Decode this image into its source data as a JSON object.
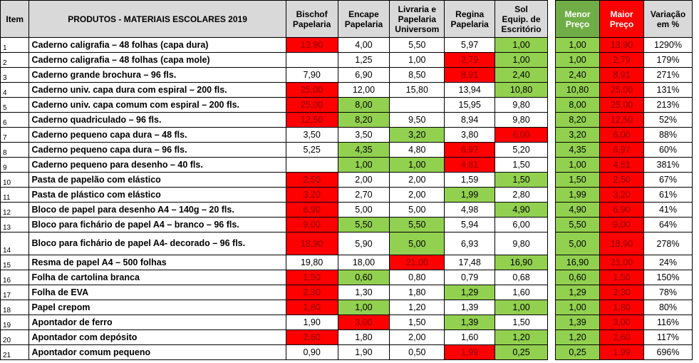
{
  "headers": {
    "item": "Item",
    "product": "PRODUTOS - MATERIAIS ESCOLARES 2019",
    "stores": [
      {
        "line1": "Bischof",
        "line2": "Papelaria",
        "line3": ""
      },
      {
        "line1": "Encape",
        "line2": "Papelaria",
        "line3": ""
      },
      {
        "line1": "Livraria e",
        "line2": "Papelaria",
        "line3": "Universom"
      },
      {
        "line1": "Regina",
        "line2": "Papelaria",
        "line3": ""
      },
      {
        "line1": "Sol",
        "line2": "Equip. de",
        "line3": "Escritório"
      }
    ],
    "min": {
      "line1": "Menor",
      "line2": "Preço"
    },
    "max": {
      "line1": "Maior",
      "line2": "Preço"
    },
    "var": {
      "line1": "Variação",
      "line2": "em %"
    }
  },
  "colors": {
    "min_highlight": "#92d050",
    "max_highlight": "#ff0000",
    "header_grey": "#d9d9d9"
  },
  "rows": [
    {
      "item": "1",
      "product": "Caderno caligrafia – 48 folhas  (capa dura)",
      "prices": [
        "13,90",
        "4,00",
        "5,50",
        "5,97",
        "1,00"
      ],
      "hl": [
        "r",
        "",
        "",
        "",
        "g"
      ],
      "min": "1,00",
      "max": "13,90",
      "var": "1290%"
    },
    {
      "item": "2",
      "product": "Caderno caligrafia – 48 folhas (capa mole)",
      "prices": [
        "",
        "1,25",
        "1,00",
        "2,79",
        "1,00"
      ],
      "hl": [
        "",
        "",
        "",
        "r",
        "g"
      ],
      "min": "1,00",
      "max": "2,79",
      "var": "179%"
    },
    {
      "item": "3",
      "product": "Caderno grande brochura – 96 fls.",
      "prices": [
        "7,90",
        "6,90",
        "8,50",
        "8,91",
        "2,40"
      ],
      "hl": [
        "",
        "",
        "",
        "r",
        "g"
      ],
      "min": "2,40",
      "max": "8,91",
      "var": "271%"
    },
    {
      "item": "4",
      "product": "Caderno univ. capa dura com espiral – 200 fls.",
      "prices": [
        "25,00",
        "12,00",
        "15,80",
        "13,94",
        "10,80"
      ],
      "hl": [
        "r",
        "",
        "",
        "",
        "g"
      ],
      "min": "10,80",
      "max": "25,00",
      "var": "131%"
    },
    {
      "item": "5",
      "product": "Caderno univ. capa comum com espiral – 200 fls.",
      "prices": [
        "25,00",
        "8,00",
        "",
        "15,95",
        "9,80"
      ],
      "hl": [
        "r",
        "g",
        "",
        "",
        ""
      ],
      "min": "8,00",
      "max": "25,00",
      "var": "213%"
    },
    {
      "item": "6",
      "product": "Caderno quadriculado – 96 fls.",
      "prices": [
        "12,50",
        "8,20",
        "9,50",
        "8,94",
        "9,80"
      ],
      "hl": [
        "r",
        "g",
        "",
        "",
        ""
      ],
      "min": "8,20",
      "max": "12,50",
      "var": "52%"
    },
    {
      "item": "7",
      "product": "Caderno pequeno capa dura – 48 fls.",
      "prices": [
        "3,50",
        "3,50",
        "3,20",
        "3,80",
        "6,00"
      ],
      "hl": [
        "",
        "",
        "g",
        "",
        "r"
      ],
      "min": "3,20",
      "max": "6,00",
      "var": "88%"
    },
    {
      "item": "8",
      "product": "Caderno pequeno capa dura – 96 fls.",
      "prices": [
        "5,25",
        "4,35",
        "4,80",
        "6,97",
        "5,20"
      ],
      "hl": [
        "",
        "g",
        "",
        "r",
        ""
      ],
      "min": "4,35",
      "max": "6,97",
      "var": "60%"
    },
    {
      "item": "9",
      "product": "Caderno pequeno para desenho – 40 fls.",
      "prices": [
        "",
        "1,00",
        "1,00",
        "4,81",
        "1,50"
      ],
      "hl": [
        "",
        "g",
        "g",
        "r",
        ""
      ],
      "min": "1,00",
      "max": "4,81",
      "var": "381%"
    },
    {
      "item": "10",
      "product": "Pasta de papelão com elástico",
      "prices": [
        "2,50",
        "2,00",
        "2,00",
        "1,59",
        "1,50"
      ],
      "hl": [
        "r",
        "",
        "",
        "",
        "g"
      ],
      "min": "1,50",
      "max": "2,50",
      "var": "67%"
    },
    {
      "item": "11",
      "product": "Pasta de plástico com elástico",
      "prices": [
        "3,20",
        "2,70",
        "2,00",
        "1,99",
        "2,80"
      ],
      "hl": [
        "r",
        "",
        "",
        "g",
        ""
      ],
      "min": "1,99",
      "max": "3,20",
      "var": "61%"
    },
    {
      "item": "12",
      "product": "Bloco de papel para desenho A4 – 140g – 20 fls.",
      "prices": [
        "6,90",
        "5,00",
        "5,00",
        "4,98",
        "4,90"
      ],
      "hl": [
        "r",
        "",
        "",
        "",
        "g"
      ],
      "min": "4,90",
      "max": "6,90",
      "var": "41%"
    },
    {
      "item": "13",
      "product": "Bloco para fichário de papel A4 – branco – 96 fls.",
      "prices": [
        "9,00",
        "5,50",
        "5,50",
        "5,94",
        "6,00"
      ],
      "hl": [
        "r",
        "g",
        "g",
        "",
        ""
      ],
      "min": "5,50",
      "max": "9,00",
      "var": "64%"
    },
    {
      "item": "14",
      "product": "Bloco para fichário de papel A4- decorado – 96 fls.",
      "prices": [
        "18,90",
        "5,90",
        "5,00",
        "6,93",
        "9,80"
      ],
      "hl": [
        "r",
        "",
        "g",
        "",
        ""
      ],
      "min": "5,00",
      "max": "18,90",
      "var": "278%"
    },
    {
      "item": "15",
      "product": "Resma de papel A4 – 500 folhas",
      "prices": [
        "19,80",
        "18,00",
        "21,00",
        "17,48",
        "16,90"
      ],
      "hl": [
        "",
        "",
        "r",
        "",
        "g"
      ],
      "min": "16,90",
      "max": "21,00",
      "var": "24%"
    },
    {
      "item": "16",
      "product": "Folha de cartolina branca",
      "prices": [
        "1,50",
        "0,60",
        "0,80",
        "0,79",
        "0,68"
      ],
      "hl": [
        "r",
        "g",
        "",
        "",
        ""
      ],
      "min": "0,60",
      "max": "1,50",
      "var": "150%"
    },
    {
      "item": "17",
      "product": "Folha de EVA",
      "prices": [
        "2,30",
        "1,30",
        "1,80",
        "1,29",
        "1,60"
      ],
      "hl": [
        "r",
        "",
        "",
        "g",
        ""
      ],
      "min": "1,29",
      "max": "2,30",
      "var": "78%"
    },
    {
      "item": "18",
      "product": "Papel crepom",
      "prices": [
        "1,80",
        "1,00",
        "1,20",
        "1,39",
        "1,00"
      ],
      "hl": [
        "r",
        "g",
        "",
        "",
        "g"
      ],
      "min": "1,00",
      "max": "1,80",
      "var": "80%"
    },
    {
      "item": "19",
      "product": "Apontador de ferro",
      "prices": [
        "1,90",
        "3,00",
        "1,50",
        "1,39",
        "1,50"
      ],
      "hl": [
        "",
        "r",
        "",
        "g",
        ""
      ],
      "min": "1,39",
      "max": "3,00",
      "var": "116%"
    },
    {
      "item": "20",
      "product": "Apontador com depósito",
      "prices": [
        "2,60",
        "1,80",
        "2,00",
        "1,60",
        "1,20"
      ],
      "hl": [
        "r",
        "",
        "",
        "",
        "g"
      ],
      "min": "1,20",
      "max": "2,60",
      "var": "117%"
    },
    {
      "item": "21",
      "product": "Apontador comum pequeno",
      "prices": [
        "0,90",
        "1,90",
        "0,50",
        "1,99",
        "0,25"
      ],
      "hl": [
        "",
        "",
        "",
        "r",
        "g"
      ],
      "min": "0,25",
      "max": "1,99",
      "var": "696%"
    }
  ]
}
